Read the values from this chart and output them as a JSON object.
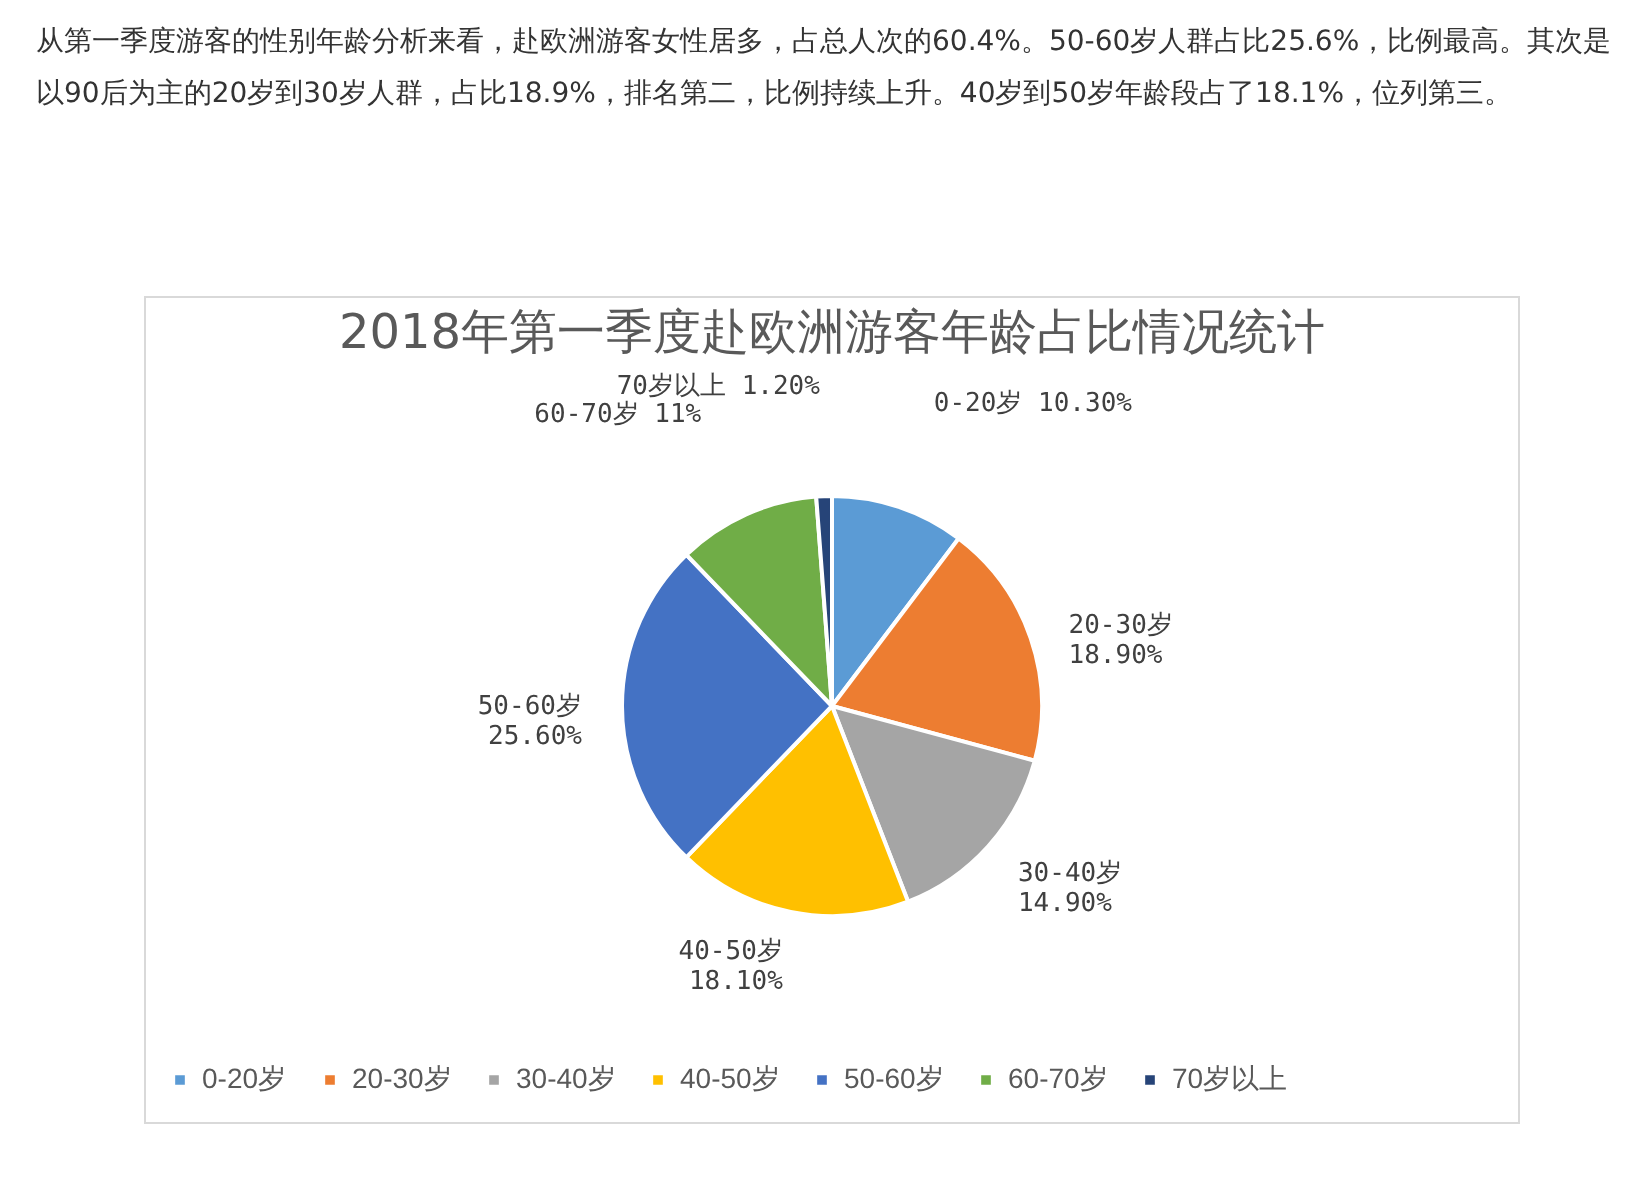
{
  "chart_data": {
    "type": "pie",
    "title": "2018年第一季度赴欧洲游客年龄占比情况统计",
    "annotations": [
      "从第一季度游客的性别年龄分析来看，赴欧洲游客女性居多，占总人次的60.4%。50-60岁人群占比25.6%，比例最高。其次是以90后为主的20岁到30岁人群，占比18.9%，排名第二，比例持续上升。40岁到50岁年龄段占了18.1%，位列第三。"
    ],
    "categories": [
      "0-20岁",
      "20-30岁",
      "30-40岁",
      "40-50岁",
      "50-60岁",
      "60-70岁",
      "70岁以上"
    ],
    "values": [
      10.3,
      18.9,
      14.9,
      18.1,
      25.6,
      11,
      1.2
    ],
    "value_labels": [
      "10.30%",
      "18.90%",
      "14.90%",
      "18.10%",
      "25.60%",
      "11%",
      "1.20%"
    ],
    "colors": [
      "#5b9bd5",
      "#ed7d31",
      "#a5a5a5",
      "#ffc000",
      "#4472c4",
      "#70ad47",
      "#264478"
    ],
    "legend": "bottom"
  }
}
